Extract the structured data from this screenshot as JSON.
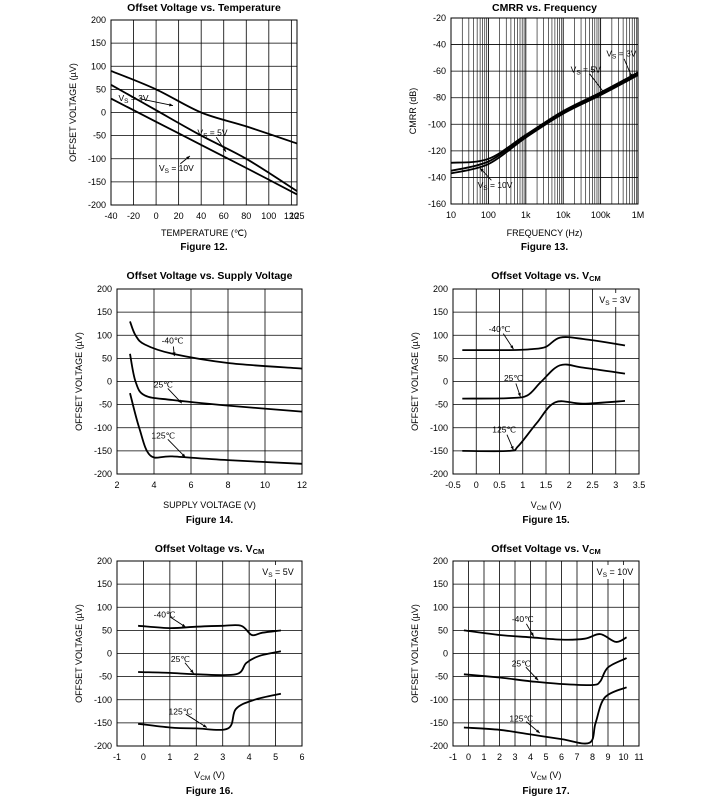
{
  "chart_data": [
    {
      "id": "fig12",
      "type": "line",
      "title": "Offset Voltage vs. Temperature",
      "xlabel": "TEMPERATURE (℃)",
      "ylabel": "OFFSET VOLTAGE (µV)",
      "caption": "Figure 12.",
      "xlim": [
        -40,
        125
      ],
      "ylim": [
        -200,
        200
      ],
      "grid": true,
      "xticks": [
        -40,
        -20,
        0,
        20,
        40,
        60,
        80,
        100,
        120,
        125
      ],
      "yticks": [
        -200,
        -150,
        -100,
        -50,
        0,
        50,
        100,
        150,
        200
      ],
      "series": [
        {
          "name": "VS = 3V",
          "x": [
            -40,
            0,
            40,
            80,
            125
          ],
          "y": [
            90,
            50,
            0,
            -30,
            -67
          ]
        },
        {
          "name": "VS = 5V",
          "x": [
            -40,
            0,
            40,
            80,
            125
          ],
          "y": [
            60,
            5,
            -50,
            -100,
            -170
          ]
        },
        {
          "name": "VS = 10V",
          "x": [
            -40,
            0,
            40,
            80,
            125
          ],
          "y": [
            30,
            -20,
            -70,
            -120,
            -177
          ]
        }
      ],
      "annotations": [
        {
          "text": "VS = 3V",
          "x": -20,
          "y": 25,
          "tx": 15,
          "ty": 15
        },
        {
          "text": "VS = 5V",
          "x": 50,
          "y": -50,
          "tx": 62,
          "ty": -85
        },
        {
          "text": "VS = 10V",
          "x": 18,
          "y": -127,
          "tx": 30,
          "ty": -94
        }
      ]
    },
    {
      "id": "fig13",
      "type": "line",
      "title": "CMRR vs. Frequency",
      "xlabel": "FREQUENCY (Hz)",
      "ylabel": "CMRR (dB)",
      "caption": "Figure 13.",
      "xscale": "log",
      "xlim": [
        10,
        1000000
      ],
      "ylim": [
        -160,
        -20
      ],
      "grid": true,
      "xticks": [
        10,
        100,
        1000,
        10000,
        100000,
        1000000
      ],
      "xticklabels": [
        "10",
        "100",
        "1k",
        "10k",
        "100k",
        "1M"
      ],
      "yticks": [
        -160,
        -140,
        -120,
        -100,
        -80,
        -60,
        -40,
        -20
      ],
      "series": [
        {
          "name": "VS = 3V",
          "x": [
            10,
            100,
            1000,
            10000,
            100000,
            1000000
          ],
          "y": [
            -129,
            -126,
            -108,
            -90,
            -76,
            -61
          ]
        },
        {
          "name": "VS = 5V",
          "x": [
            10,
            100,
            1000,
            10000,
            100000,
            1000000
          ],
          "y": [
            -135,
            -128,
            -109,
            -91,
            -77,
            -62
          ]
        },
        {
          "name": "VS = 10V",
          "x": [
            10,
            100,
            1000,
            10000,
            100000,
            1000000
          ],
          "y": [
            -137,
            -130,
            -110,
            -92,
            -78,
            -63
          ]
        }
      ],
      "annotations": [
        {
          "text": "VS = 3V",
          "x": 360000,
          "y": -49,
          "tx": 700000,
          "ty": -65
        },
        {
          "text": "VS = 5V",
          "x": 40000,
          "y": -61,
          "tx": 130000,
          "ty": -77
        },
        {
          "text": "VS = 10V",
          "x": 150,
          "y": -148,
          "tx": 60,
          "ty": -133
        }
      ]
    },
    {
      "id": "fig14",
      "type": "line",
      "title": "Offset Voltage vs. Supply Voltage",
      "xlabel": "SUPPLY VOLTAGE (V)",
      "ylabel": "OFFSET VOLTAGE (µV)",
      "caption": "Figure 14.",
      "xlim": [
        2,
        12
      ],
      "ylim": [
        -200,
        200
      ],
      "grid": true,
      "xticks": [
        2,
        4,
        6,
        8,
        10,
        12
      ],
      "yticks": [
        -200,
        -150,
        -100,
        -50,
        0,
        50,
        100,
        150,
        200
      ],
      "series": [
        {
          "name": "-40℃",
          "x": [
            2.7,
            3,
            3.5,
            5,
            8,
            12
          ],
          "y": [
            130,
            100,
            80,
            60,
            40,
            28
          ]
        },
        {
          "name": "25℃",
          "x": [
            2.7,
            3,
            3.5,
            5,
            8,
            12
          ],
          "y": [
            60,
            0,
            -30,
            -40,
            -52,
            -65
          ]
        },
        {
          "name": "125℃",
          "x": [
            2.7,
            3.2,
            3.8,
            5,
            8,
            12
          ],
          "y": [
            -25,
            -100,
            -160,
            -162,
            -170,
            -178
          ]
        }
      ],
      "annotations": [
        {
          "text": "-40℃",
          "x": 5,
          "y": 82,
          "tx": 5.1,
          "ty": 55
        },
        {
          "text": "25℃",
          "x": 4.5,
          "y": -13,
          "tx": 5.5,
          "ty": -47
        },
        {
          "text": "125℃",
          "x": 4.5,
          "y": -123,
          "tx": 5.7,
          "ty": -164
        }
      ]
    },
    {
      "id": "fig15",
      "type": "line",
      "title": "Offset Voltage vs. VCM",
      "title_sub": "CM",
      "xlabel": "VCM (V)",
      "ylabel": "OFFSET VOLTAGE (µV)",
      "caption": "Figure 15.",
      "box_label": "VS = 3V",
      "xlim": [
        -0.5,
        3.5
      ],
      "ylim": [
        -200,
        200
      ],
      "grid": true,
      "xticks": [
        -0.5,
        0,
        0.5,
        1,
        1.5,
        2,
        2.5,
        3,
        3.5
      ],
      "yticks": [
        -200,
        -150,
        -100,
        -50,
        0,
        50,
        100,
        150,
        200
      ],
      "series": [
        {
          "name": "-40℃",
          "x": [
            -0.3,
            0.7,
            1.2,
            1.5,
            1.8,
            2.3,
            3.2
          ],
          "y": [
            68,
            68,
            70,
            75,
            95,
            92,
            78
          ]
        },
        {
          "name": "25℃",
          "x": [
            -0.3,
            0.7,
            1.1,
            1.4,
            1.8,
            2.3,
            3.2
          ],
          "y": [
            -37,
            -36,
            -30,
            0,
            35,
            30,
            17
          ]
        },
        {
          "name": "125℃",
          "x": [
            -0.3,
            0.7,
            0.9,
            1.3,
            1.7,
            2.3,
            3.2
          ],
          "y": [
            -150,
            -150,
            -140,
            -90,
            -45,
            -48,
            -42
          ]
        }
      ],
      "annotations": [
        {
          "text": "-40℃",
          "x": 0.5,
          "y": 107,
          "tx": 0.8,
          "ty": 70
        },
        {
          "text": "25℃",
          "x": 0.8,
          "y": 1,
          "tx": 0.95,
          "ty": -33
        },
        {
          "text": "125℃",
          "x": 0.6,
          "y": -110,
          "tx": 0.8,
          "ty": -148
        }
      ]
    },
    {
      "id": "fig16",
      "type": "line",
      "title": "Offset Voltage vs. VCM",
      "title_sub": "CM",
      "xlabel": "VCM (V)",
      "ylabel": "OFFSET VOLTAGE (µV)",
      "caption": "Figure 16.",
      "box_label": "VS = 5V",
      "xlim": [
        -1,
        6
      ],
      "ylim": [
        -200,
        200
      ],
      "grid": true,
      "xticks": [
        -1,
        0,
        1,
        2,
        3,
        4,
        5,
        6
      ],
      "yticks": [
        -200,
        -150,
        -100,
        -50,
        0,
        50,
        100,
        150,
        200
      ],
      "series": [
        {
          "name": "-40℃",
          "x": [
            -0.2,
            1,
            2,
            3,
            3.7,
            4.1,
            4.5,
            5.2
          ],
          "y": [
            60,
            55,
            58,
            60,
            60,
            40,
            45,
            50
          ]
        },
        {
          "name": "25℃",
          "x": [
            -0.2,
            1,
            2,
            3.5,
            3.9,
            4.4,
            5.2
          ],
          "y": [
            -40,
            -42,
            -45,
            -45,
            -20,
            -5,
            5
          ]
        },
        {
          "name": "125℃",
          "x": [
            -0.2,
            1,
            2,
            3.2,
            3.5,
            4.2,
            5.2
          ],
          "y": [
            -152,
            -160,
            -162,
            -162,
            -120,
            -100,
            -87
          ]
        }
      ],
      "annotations": [
        {
          "text": "-40℃",
          "x": 0.8,
          "y": 78,
          "tx": 1.6,
          "ty": 57
        },
        {
          "text": "25℃",
          "x": 1.4,
          "y": -18,
          "tx": 1.9,
          "ty": -43
        },
        {
          "text": "125℃",
          "x": 1.4,
          "y": -132,
          "tx": 2.4,
          "ty": -160
        }
      ]
    },
    {
      "id": "fig17",
      "type": "line",
      "title": "Offset Voltage vs. VCM",
      "title_sub": "CM",
      "xlabel": "VCM (V)",
      "ylabel": "OFFSET VOLTAGE (µV)",
      "caption": "Figure 17.",
      "box_label": "VS = 10V",
      "xlim": [
        -1,
        11
      ],
      "ylim": [
        -200,
        200
      ],
      "grid": true,
      "xticks": [
        -1,
        0,
        1,
        2,
        3,
        4,
        5,
        6,
        7,
        8,
        9,
        10,
        11
      ],
      "yticks": [
        -200,
        -150,
        -100,
        -50,
        0,
        50,
        100,
        150,
        200
      ],
      "series": [
        {
          "name": "-40℃",
          "x": [
            -0.3,
            2,
            4,
            6,
            7.5,
            8.5,
            9.5,
            10.2
          ],
          "y": [
            50,
            40,
            35,
            30,
            32,
            42,
            25,
            35
          ]
        },
        {
          "name": "25℃",
          "x": [
            -0.3,
            2,
            4,
            6,
            8,
            8.5,
            9,
            10.2
          ],
          "y": [
            -45,
            -52,
            -60,
            -66,
            -68,
            -60,
            -30,
            -10
          ]
        },
        {
          "name": "125℃",
          "x": [
            -0.3,
            2,
            4,
            6,
            7.8,
            8.2,
            8.8,
            10.2
          ],
          "y": [
            -160,
            -165,
            -175,
            -185,
            -193,
            -150,
            -95,
            -73
          ]
        }
      ],
      "annotations": [
        {
          "text": "-40℃",
          "x": 3.5,
          "y": 68,
          "tx": 4.2,
          "ty": 37
        },
        {
          "text": "25℃",
          "x": 3.4,
          "y": -28,
          "tx": 4.5,
          "ty": -58
        },
        {
          "text": "125℃",
          "x": 3.4,
          "y": -147,
          "tx": 4.6,
          "ty": -172
        }
      ]
    }
  ]
}
